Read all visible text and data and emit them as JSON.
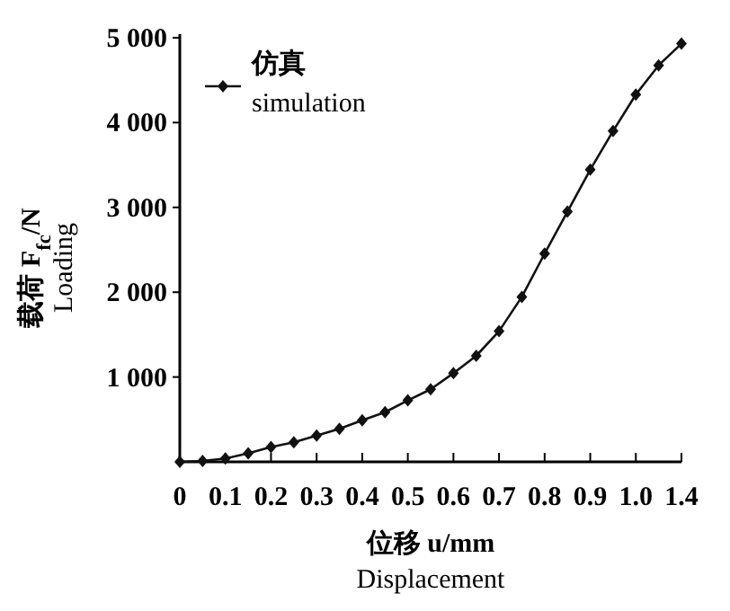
{
  "chart_data": {
    "type": "line",
    "xlabel": "位移 u/mm\nDisplacement",
    "ylabel": "载荷 F$_{fc}$/N\nLoading",
    "categories": [
      "0",
      null,
      "0.1",
      null,
      "0.2",
      null,
      "0.3",
      null,
      "0.4",
      null,
      "0.5",
      null,
      "0.6",
      null,
      "0.7",
      null,
      "0.8",
      null,
      "0.9",
      null,
      "1.0",
      null,
      "1.4"
    ],
    "series": [
      {
        "name": "仿真\nsimulation",
        "color": "#111111",
        "values": [
          0,
          10,
          40,
          100,
          175,
          230,
          310,
          390,
          490,
          585,
          725,
          855,
          1045,
          1250,
          1540,
          1945,
          2455,
          2950,
          3445,
          3900,
          4330,
          4675,
          4930
        ]
      }
    ],
    "ylim": [
      0,
      5000
    ],
    "yticks": [
      {
        "value": 1000,
        "label": "1 000"
      },
      {
        "value": 2000,
        "label": "2 000"
      },
      {
        "value": 3000,
        "label": "3 000"
      },
      {
        "value": 4000,
        "label": "4 000"
      },
      {
        "value": 5000,
        "label": "5 000"
      }
    ],
    "marker": "diamond",
    "line_style": "solid",
    "legend": "top left"
  }
}
